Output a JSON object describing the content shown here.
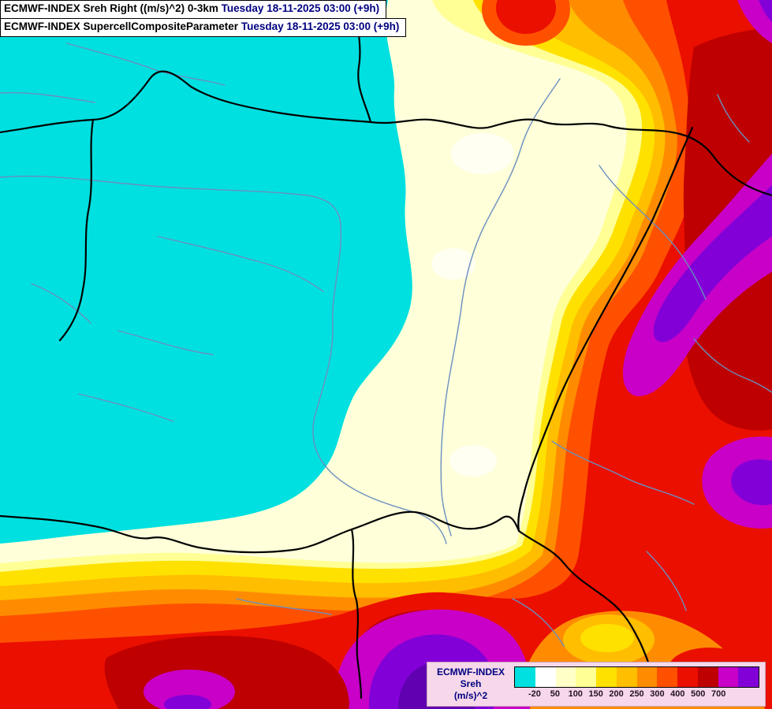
{
  "header": {
    "line1_title": "ECMWF-INDEX Sreh Right ((m/s)^2) 0-3km",
    "line1_datetime": "Tuesday 18-11-2025 03:00 (+9h)",
    "line2_title": "ECMWF-INDEX SupercellCompositeParameter",
    "line2_datetime": "Tuesday 18-11-2025 03:00 (+9h)"
  },
  "legend": {
    "title_line1": "ECMWF-INDEX",
    "title_line2": "Sreh",
    "title_line3": "(m/s)^2",
    "tick_labels": [
      "-20",
      "50",
      "100",
      "150",
      "200",
      "250",
      "300",
      "400",
      "500",
      "700"
    ],
    "swatches": [
      "#00E0E0",
      "#FFFFFF",
      "#FFFFC8",
      "#FFFF96",
      "#FFE100",
      "#FFBE00",
      "#FF8C00",
      "#FF5000",
      "#EB0F00",
      "#BE0000",
      "#C800C8",
      "#8200D7"
    ]
  },
  "colors": {
    "cyan": "#00E0E0",
    "cream": "#FFFFDA",
    "white_spot": "#FFFFF2",
    "pale_yellow": "#FFFF96",
    "yellow": "#FFE100",
    "gold": "#FFBE00",
    "orange": "#FF8C00",
    "dark_orange": "#FF5000",
    "red": "#EB0F00",
    "dark_red": "#BE0000",
    "magenta": "#C800C8",
    "purple": "#8200D7",
    "violet": "#6000B0",
    "river": "#6A8FBF",
    "border": "#000000",
    "legend_bg": "#F6D8EA",
    "legend_text": "#000080",
    "header_datetime": "#000080"
  }
}
